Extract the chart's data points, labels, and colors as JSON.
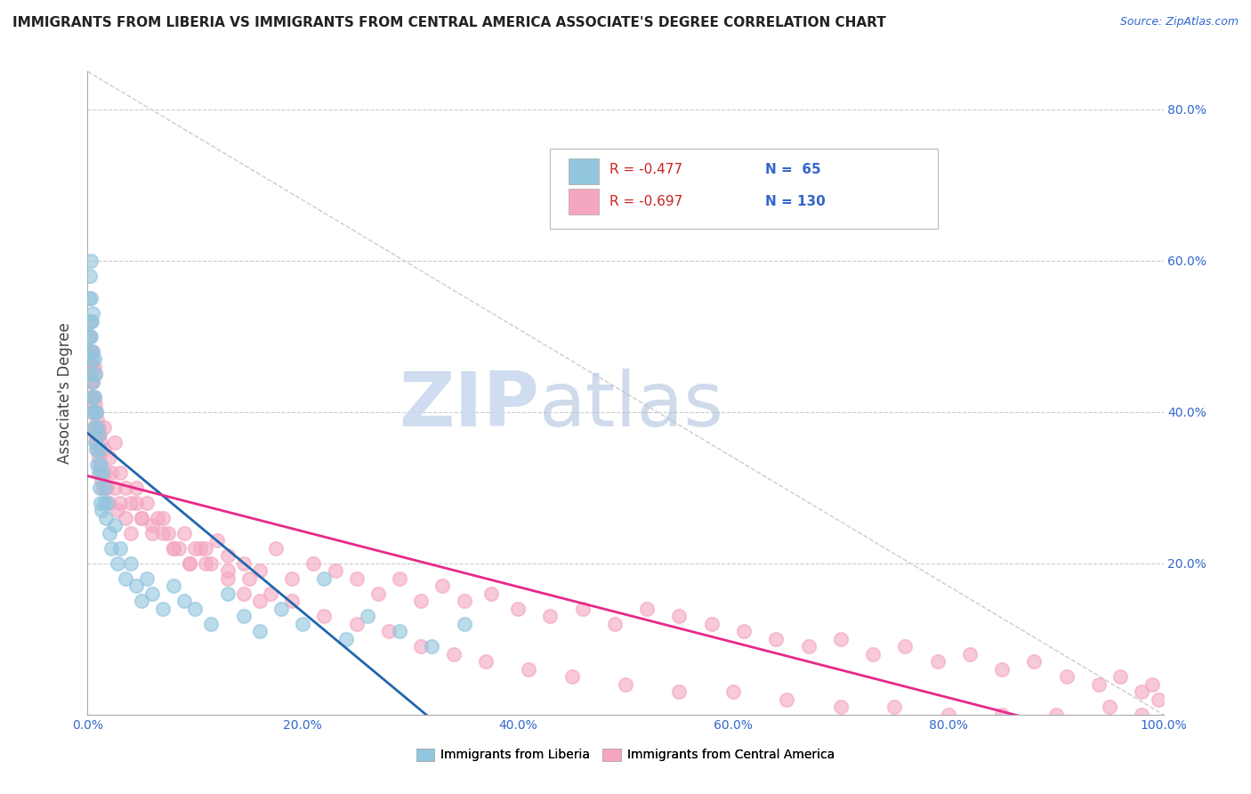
{
  "title": "IMMIGRANTS FROM LIBERIA VS IMMIGRANTS FROM CENTRAL AMERICA ASSOCIATE'S DEGREE CORRELATION CHART",
  "source": "Source: ZipAtlas.com",
  "ylabel": "Associate's Degree",
  "xlim": [
    0.0,
    1.0
  ],
  "ylim": [
    0.0,
    0.85
  ],
  "color_liberia": "#92c5de",
  "color_central": "#f4a6c0",
  "color_line_liberia": "#2166ac",
  "color_line_central": "#e7298a",
  "color_diagonal": "#cccccc",
  "rn_color": "#cc2222",
  "n_color": "#3366cc",
  "tick_color": "#3366cc",
  "title_color": "#222222",
  "source_color": "#3366cc",
  "ylabel_color": "#444444",
  "liberia_x": [
    0.001,
    0.001,
    0.002,
    0.002,
    0.002,
    0.003,
    0.003,
    0.003,
    0.003,
    0.004,
    0.004,
    0.004,
    0.005,
    0.005,
    0.005,
    0.005,
    0.006,
    0.006,
    0.006,
    0.007,
    0.007,
    0.007,
    0.008,
    0.008,
    0.009,
    0.009,
    0.01,
    0.01,
    0.011,
    0.011,
    0.012,
    0.012,
    0.013,
    0.014,
    0.015,
    0.016,
    0.017,
    0.018,
    0.02,
    0.022,
    0.025,
    0.028,
    0.03,
    0.035,
    0.04,
    0.045,
    0.05,
    0.055,
    0.06,
    0.07,
    0.08,
    0.09,
    0.1,
    0.115,
    0.13,
    0.145,
    0.16,
    0.18,
    0.2,
    0.22,
    0.24,
    0.26,
    0.29,
    0.32,
    0.35
  ],
  "liberia_y": [
    0.5,
    0.55,
    0.48,
    0.52,
    0.58,
    0.45,
    0.5,
    0.55,
    0.6,
    0.42,
    0.47,
    0.52,
    0.4,
    0.44,
    0.48,
    0.53,
    0.38,
    0.42,
    0.47,
    0.36,
    0.4,
    0.45,
    0.35,
    0.4,
    0.33,
    0.38,
    0.32,
    0.37,
    0.3,
    0.35,
    0.28,
    0.33,
    0.27,
    0.32,
    0.28,
    0.3,
    0.26,
    0.28,
    0.24,
    0.22,
    0.25,
    0.2,
    0.22,
    0.18,
    0.2,
    0.17,
    0.15,
    0.18,
    0.16,
    0.14,
    0.17,
    0.15,
    0.14,
    0.12,
    0.16,
    0.13,
    0.11,
    0.14,
    0.12,
    0.18,
    0.1,
    0.13,
    0.11,
    0.09,
    0.12
  ],
  "central_x": [
    0.001,
    0.002,
    0.002,
    0.003,
    0.003,
    0.003,
    0.004,
    0.004,
    0.005,
    0.005,
    0.005,
    0.006,
    0.006,
    0.006,
    0.007,
    0.007,
    0.007,
    0.008,
    0.008,
    0.009,
    0.009,
    0.01,
    0.01,
    0.011,
    0.011,
    0.012,
    0.012,
    0.013,
    0.014,
    0.015,
    0.016,
    0.018,
    0.02,
    0.022,
    0.025,
    0.028,
    0.03,
    0.035,
    0.04,
    0.045,
    0.05,
    0.06,
    0.07,
    0.08,
    0.09,
    0.1,
    0.11,
    0.12,
    0.13,
    0.145,
    0.16,
    0.175,
    0.19,
    0.21,
    0.23,
    0.25,
    0.27,
    0.29,
    0.31,
    0.33,
    0.35,
    0.375,
    0.4,
    0.43,
    0.46,
    0.49,
    0.52,
    0.55,
    0.58,
    0.61,
    0.64,
    0.67,
    0.7,
    0.73,
    0.76,
    0.79,
    0.82,
    0.85,
    0.88,
    0.91,
    0.94,
    0.96,
    0.98,
    0.99,
    0.995,
    0.015,
    0.02,
    0.025,
    0.03,
    0.035,
    0.04,
    0.045,
    0.05,
    0.06,
    0.07,
    0.08,
    0.095,
    0.11,
    0.13,
    0.15,
    0.17,
    0.19,
    0.22,
    0.25,
    0.28,
    0.31,
    0.34,
    0.37,
    0.41,
    0.45,
    0.5,
    0.55,
    0.6,
    0.65,
    0.7,
    0.75,
    0.8,
    0.85,
    0.9,
    0.95,
    0.98,
    0.055,
    0.065,
    0.075,
    0.085,
    0.095,
    0.105,
    0.115,
    0.13,
    0.145,
    0.16
  ],
  "central_y": [
    0.48,
    0.46,
    0.5,
    0.44,
    0.48,
    0.52,
    0.42,
    0.46,
    0.4,
    0.44,
    0.48,
    0.38,
    0.42,
    0.46,
    0.37,
    0.41,
    0.45,
    0.36,
    0.4,
    0.35,
    0.39,
    0.34,
    0.38,
    0.33,
    0.37,
    0.32,
    0.36,
    0.31,
    0.3,
    0.35,
    0.32,
    0.3,
    0.28,
    0.32,
    0.3,
    0.27,
    0.28,
    0.26,
    0.24,
    0.28,
    0.26,
    0.24,
    0.26,
    0.22,
    0.24,
    0.22,
    0.2,
    0.23,
    0.21,
    0.2,
    0.19,
    0.22,
    0.18,
    0.2,
    0.19,
    0.18,
    0.16,
    0.18,
    0.15,
    0.17,
    0.15,
    0.16,
    0.14,
    0.13,
    0.14,
    0.12,
    0.14,
    0.13,
    0.12,
    0.11,
    0.1,
    0.09,
    0.1,
    0.08,
    0.09,
    0.07,
    0.08,
    0.06,
    0.07,
    0.05,
    0.04,
    0.05,
    0.03,
    0.04,
    0.02,
    0.38,
    0.34,
    0.36,
    0.32,
    0.3,
    0.28,
    0.3,
    0.26,
    0.25,
    0.24,
    0.22,
    0.2,
    0.22,
    0.19,
    0.18,
    0.16,
    0.15,
    0.13,
    0.12,
    0.11,
    0.09,
    0.08,
    0.07,
    0.06,
    0.05,
    0.04,
    0.03,
    0.03,
    0.02,
    0.01,
    0.01,
    0.0,
    0.0,
    0.0,
    0.01,
    0.0,
    0.28,
    0.26,
    0.24,
    0.22,
    0.2,
    0.22,
    0.2,
    0.18,
    0.16,
    0.15
  ]
}
